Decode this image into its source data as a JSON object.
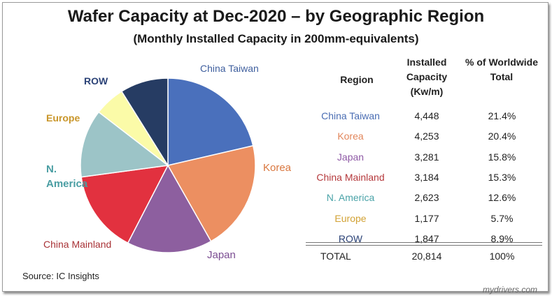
{
  "title": "Wafer Capacity at Dec-2020 – by Geographic Region",
  "subtitle": "(Monthly Installed Capacity in 200mm-equivalents)",
  "table": {
    "headers": [
      "Region",
      "Installed Capacity (Kw/m)",
      "% of Worldwide Total"
    ],
    "rows": [
      {
        "region": "China Taiwan",
        "capacity": "4,448",
        "pct": "21.4%",
        "color": "#4a6db3"
      },
      {
        "region": "Korea",
        "capacity": "4,253",
        "pct": "20.4%",
        "color": "#e2865b"
      },
      {
        "region": "Japan",
        "capacity": "3,281",
        "pct": "15.8%",
        "color": "#8f5aa6"
      },
      {
        "region": "China Mainland",
        "capacity": "3,184",
        "pct": "15.3%",
        "color": "#b5393c"
      },
      {
        "region": "N. America",
        "capacity": "2,623",
        "pct": "12.6%",
        "color": "#4aa3a8"
      },
      {
        "region": "Europe",
        "capacity": "1,177",
        "pct": "5.7%",
        "color": "#d2a235"
      },
      {
        "region": "ROW",
        "capacity": "1,847",
        "pct": "8.9%",
        "color": "#2c4377"
      }
    ],
    "total": {
      "label": "TOTAL",
      "capacity": "20,814",
      "pct": "100%"
    }
  },
  "chart_data": {
    "type": "pie",
    "title": "Wafer Capacity at Dec-2020 – by Geographic Region",
    "subtitle": "(Monthly Installed Capacity in 200mm-equivalents)",
    "slices": [
      {
        "label": "China Taiwan",
        "value": 4448,
        "color": "#4a70bc"
      },
      {
        "label": "Korea",
        "value": 4253,
        "color": "#ec8f61"
      },
      {
        "label": "Japan",
        "value": 3281,
        "color": "#8d5f9f"
      },
      {
        "label": "China Mainland",
        "value": 3184,
        "color": "#e2313f"
      },
      {
        "label": "N. America",
        "value": 2623,
        "color": "#9cc4c7"
      },
      {
        "label": "Europe",
        "value": 1177,
        "color": "#fbfba8"
      },
      {
        "label": "ROW",
        "value": 1847,
        "color": "#263c63"
      }
    ],
    "pie_labels": [
      {
        "text": "China Taiwan",
        "color": "#3f5f9e"
      },
      {
        "text": "Korea",
        "color": "#d9773f"
      },
      {
        "text": "Japan",
        "color": "#7b4d92"
      },
      {
        "text": "China Mainland",
        "color": "#a83236"
      },
      {
        "text": "N. America",
        "color": "#4a9ea3"
      },
      {
        "text": "Europe",
        "color": "#c9962a"
      },
      {
        "text": "ROW",
        "color": "#2c4377"
      }
    ]
  },
  "source": "Source:  IC Insights",
  "watermark": "mydrivers.com"
}
